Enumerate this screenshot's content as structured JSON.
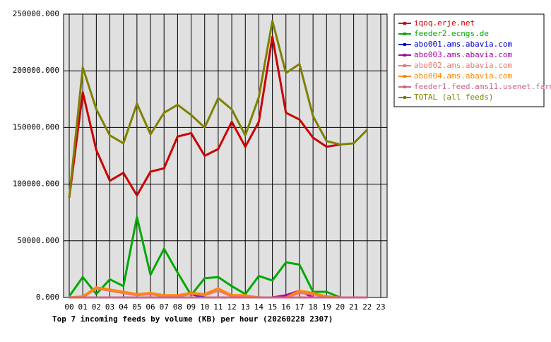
{
  "chart_data": {
    "type": "line",
    "title": "Top 7 incoming feeds by volume (KB) per hour (20260228 2307)",
    "categories": [
      "00",
      "01",
      "02",
      "03",
      "04",
      "05",
      "06",
      "07",
      "08",
      "09",
      "10",
      "11",
      "12",
      "13",
      "14",
      "15",
      "16",
      "17",
      "18",
      "19",
      "20",
      "21",
      "22",
      "23"
    ],
    "ylim": [
      0,
      250000
    ],
    "yticks": [
      {
        "value": 0,
        "label": "0.000"
      },
      {
        "value": 50000,
        "label": "50000.000"
      },
      {
        "value": 100000,
        "label": "100000.000"
      },
      {
        "value": 150000,
        "label": "150000.000"
      },
      {
        "value": 200000,
        "label": "200000.000"
      },
      {
        "value": 250000,
        "label": "250000.000"
      }
    ],
    "grid": true,
    "legend": "right",
    "series": [
      {
        "name": "iqoq.erje.net",
        "color": "#cc0000",
        "values": [
          88000,
          181000,
          130000,
          103000,
          110000,
          90000,
          111000,
          114000,
          142000,
          145000,
          125000,
          131000,
          155000,
          133000,
          155000,
          230000,
          163000,
          157000,
          141000,
          133000,
          135000,
          null,
          null,
          null
        ]
      },
      {
        "name": "feeder2.ecngs.de",
        "color": "#00aa00",
        "values": [
          1000,
          18000,
          3000,
          16000,
          10000,
          71000,
          20000,
          43000,
          22000,
          2000,
          17000,
          18000,
          10000,
          3000,
          19000,
          15000,
          31000,
          29000,
          5000,
          5000,
          0,
          0,
          0,
          null
        ]
      },
      {
        "name": "abo001.ams.abavia.com",
        "color": "#0000cc",
        "values": [
          0,
          0,
          0,
          0,
          0,
          0,
          0,
          0,
          2000,
          3000,
          0,
          0,
          0,
          0,
          0,
          0,
          0,
          0,
          0,
          0,
          0,
          0,
          0,
          null
        ]
      },
      {
        "name": "abo003.ams.abavia.com",
        "color": "#aa00aa",
        "values": [
          0,
          0,
          0,
          0,
          0,
          0,
          0,
          0,
          0,
          0,
          0,
          0,
          0,
          0,
          0,
          0,
          2000,
          6000,
          0,
          0,
          0,
          0,
          0,
          null
        ]
      },
      {
        "name": "abo002.ams.abavia.com",
        "color": "#ee7777",
        "values": [
          0,
          0,
          8000,
          6000,
          4000,
          2000,
          3000,
          1000,
          1000,
          3000,
          2000,
          6000,
          1000,
          1000,
          0,
          0,
          0,
          4000,
          3000,
          0,
          0,
          0,
          0,
          null
        ]
      },
      {
        "name": "abo004.ams.abavia.com",
        "color": "#ff8800",
        "values": [
          0,
          1000,
          9000,
          7000,
          5000,
          3000,
          4000,
          2000,
          2000,
          4000,
          3000,
          8000,
          2000,
          2000,
          0,
          0,
          0,
          6000,
          4000,
          1000,
          0,
          0,
          0,
          null
        ]
      },
      {
        "name": "feeder1.feed.ams11.usenet.farm",
        "color": "#cc6688",
        "values": [
          0,
          0,
          0,
          0,
          0,
          0,
          0,
          0,
          0,
          0,
          0,
          0,
          0,
          0,
          0,
          0,
          0,
          0,
          0,
          0,
          0,
          0,
          0,
          null
        ]
      },
      {
        "name": "TOTAL (all feeds)",
        "color": "#808000",
        "values": [
          88000,
          203000,
          166000,
          143000,
          136000,
          171000,
          144000,
          163000,
          170000,
          161000,
          150000,
          176000,
          166000,
          143000,
          177000,
          244000,
          198000,
          206000,
          160000,
          138000,
          135000,
          136000,
          148000,
          null
        ]
      }
    ]
  }
}
